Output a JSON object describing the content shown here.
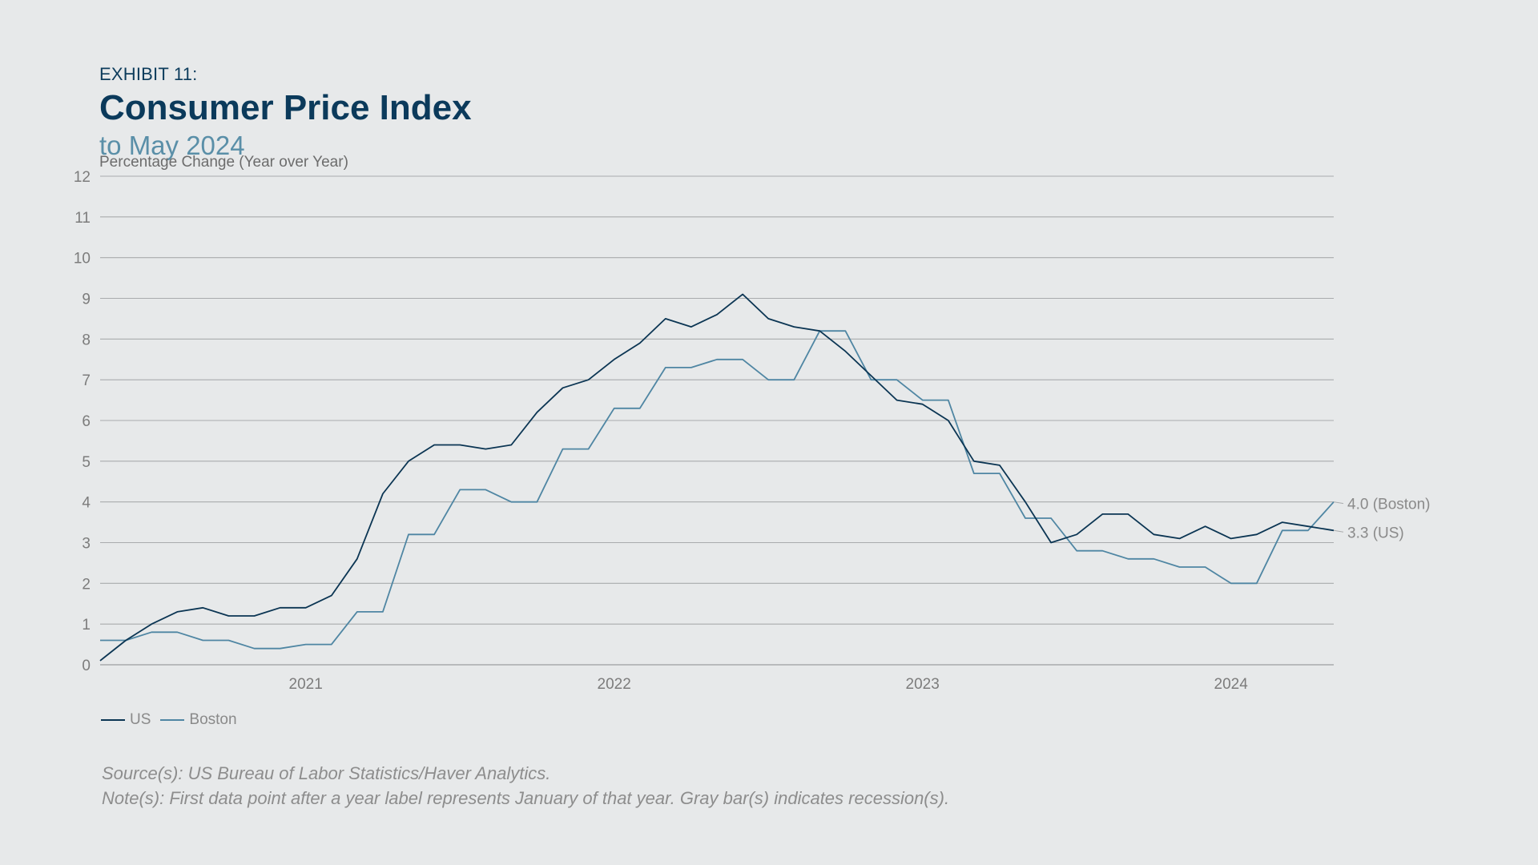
{
  "header": {
    "exhibit": "EXHIBIT 11:",
    "title": "Consumer Price Index",
    "subtitle": "to May 2024"
  },
  "notes": {
    "source": "Source(s): US Bureau of Labor Statistics/Haver Analytics.",
    "note": "Note(s): First data point after a year label represents January of that year. Gray bar(s) indicates recession(s)."
  },
  "colors": {
    "background": "#e7e9ea",
    "us": "#0b3553",
    "boston": "#4f86a3",
    "grid": "#a9abad",
    "axis_text": "#7c7c7c"
  },
  "chart_data": {
    "type": "line",
    "title": "Consumer Price Index",
    "subtitle": "to May 2024",
    "ylabel": "Percentage Change (Year over Year)",
    "xlabel": "",
    "ylim": [
      0,
      12
    ],
    "yticks": [
      0,
      1,
      2,
      3,
      4,
      5,
      6,
      7,
      8,
      9,
      10,
      11,
      12
    ],
    "x_start": "2020-05",
    "x_end": "2024-05",
    "x_tick_labels": [
      {
        "label": "2021",
        "date": "2021-01"
      },
      {
        "label": "2022",
        "date": "2022-01"
      },
      {
        "label": "2023",
        "date": "2023-01"
      },
      {
        "label": "2024",
        "date": "2024-01"
      }
    ],
    "grid": true,
    "legend_position": "bottom-left",
    "x": [
      "2020-05",
      "2020-06",
      "2020-07",
      "2020-08",
      "2020-09",
      "2020-10",
      "2020-11",
      "2020-12",
      "2021-01",
      "2021-02",
      "2021-03",
      "2021-04",
      "2021-05",
      "2021-06",
      "2021-07",
      "2021-08",
      "2021-09",
      "2021-10",
      "2021-11",
      "2021-12",
      "2022-01",
      "2022-02",
      "2022-03",
      "2022-04",
      "2022-05",
      "2022-06",
      "2022-07",
      "2022-08",
      "2022-09",
      "2022-10",
      "2022-11",
      "2022-12",
      "2023-01",
      "2023-02",
      "2023-03",
      "2023-04",
      "2023-05",
      "2023-06",
      "2023-07",
      "2023-08",
      "2023-09",
      "2023-10",
      "2023-11",
      "2023-12",
      "2024-01",
      "2024-02",
      "2024-03",
      "2024-04",
      "2024-05"
    ],
    "series": [
      {
        "name": "US",
        "values": [
          0.1,
          0.6,
          1.0,
          1.3,
          1.4,
          1.2,
          1.2,
          1.4,
          1.4,
          1.7,
          2.6,
          4.2,
          5.0,
          5.4,
          5.4,
          5.3,
          5.4,
          6.2,
          6.8,
          7.0,
          7.5,
          7.9,
          8.5,
          8.3,
          8.6,
          9.1,
          8.5,
          8.3,
          8.2,
          7.7,
          7.1,
          6.5,
          6.4,
          6.0,
          5.0,
          4.9,
          4.0,
          3.0,
          3.2,
          3.7,
          3.7,
          3.2,
          3.1,
          3.4,
          3.1,
          3.2,
          3.5,
          3.4,
          3.3
        ],
        "end_label": "3.3 (US)"
      },
      {
        "name": "Boston",
        "values": [
          0.6,
          0.6,
          0.8,
          0.8,
          0.6,
          0.6,
          0.4,
          0.4,
          0.5,
          0.5,
          1.3,
          1.3,
          3.2,
          3.2,
          4.3,
          4.3,
          4.0,
          4.0,
          5.3,
          5.3,
          6.3,
          6.3,
          7.3,
          7.3,
          7.5,
          7.5,
          7.0,
          7.0,
          8.2,
          8.2,
          7.0,
          7.0,
          6.5,
          6.5,
          4.7,
          4.7,
          3.6,
          3.6,
          2.8,
          2.8,
          2.6,
          2.6,
          2.4,
          2.4,
          2.0,
          2.0,
          3.3,
          3.3,
          4.0
        ],
        "end_label": "4.0 (Boston)"
      }
    ]
  }
}
